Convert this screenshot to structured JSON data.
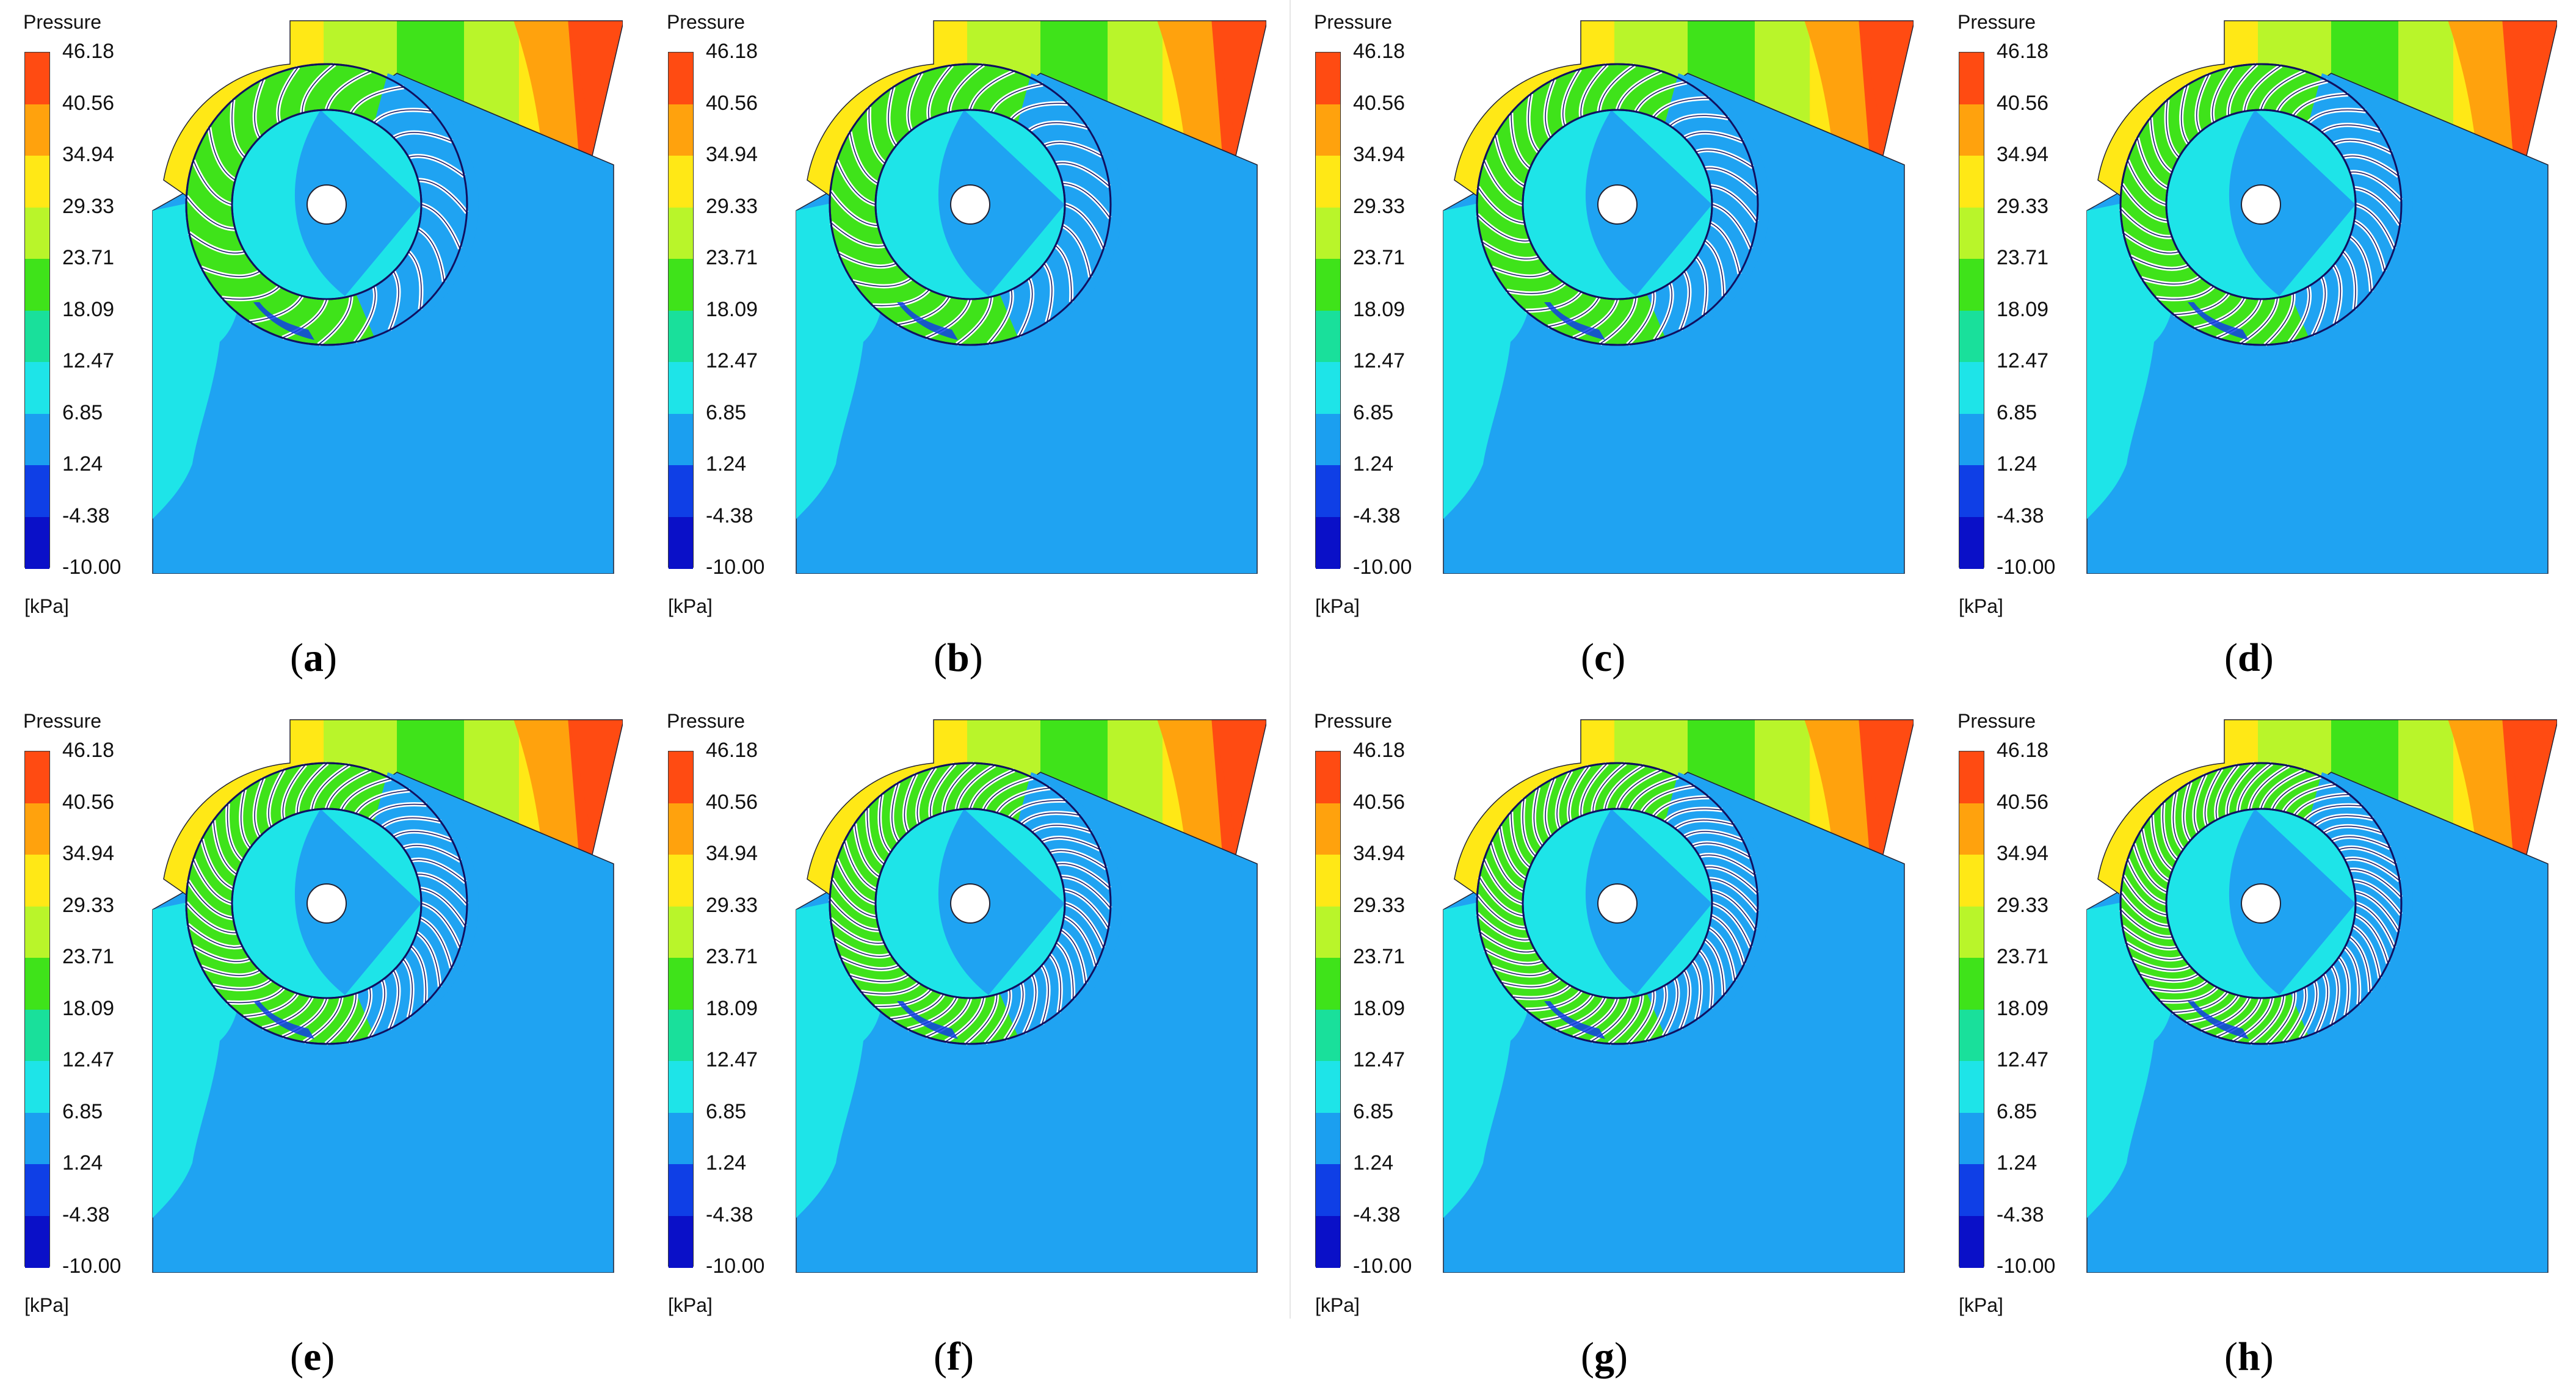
{
  "legend": {
    "title": "Pressure",
    "unit": "[kPa]",
    "ticks": [
      "46.18",
      "40.56",
      "34.94",
      "29.33",
      "23.71",
      "18.09",
      "12.47",
      "6.85",
      "1.24",
      "-4.38",
      "-10.00"
    ],
    "band_colors": [
      "#ff4b12",
      "#ffa20d",
      "#ffe816",
      "#b9f52a",
      "#3fe31a",
      "#19e09b",
      "#1ee4e8",
      "#1b9ff0",
      "#0f3fe6",
      "#0a10c8"
    ]
  },
  "colors": {
    "background_field": "#1fa3f2",
    "outlet_field": "#1ee4e8",
    "volute_hot": "#ff4b12",
    "volute_orange": "#ffa20d",
    "volute_yellow": "#ffe816",
    "volute_lime": "#b9f52a",
    "volute_green": "#3fe31a",
    "low_pressure": "#0f3fe6",
    "runner_outline": "#101060"
  },
  "panels": [
    {
      "label": "a",
      "blade_count": 24
    },
    {
      "label": "b",
      "blade_count": 28
    },
    {
      "label": "c",
      "blade_count": 32
    },
    {
      "label": "d",
      "blade_count": 36
    },
    {
      "label": "e",
      "blade_count": 40
    },
    {
      "label": "f",
      "blade_count": 44
    },
    {
      "label": "g",
      "blade_count": 48
    },
    {
      "label": "h",
      "blade_count": 52
    }
  ]
}
